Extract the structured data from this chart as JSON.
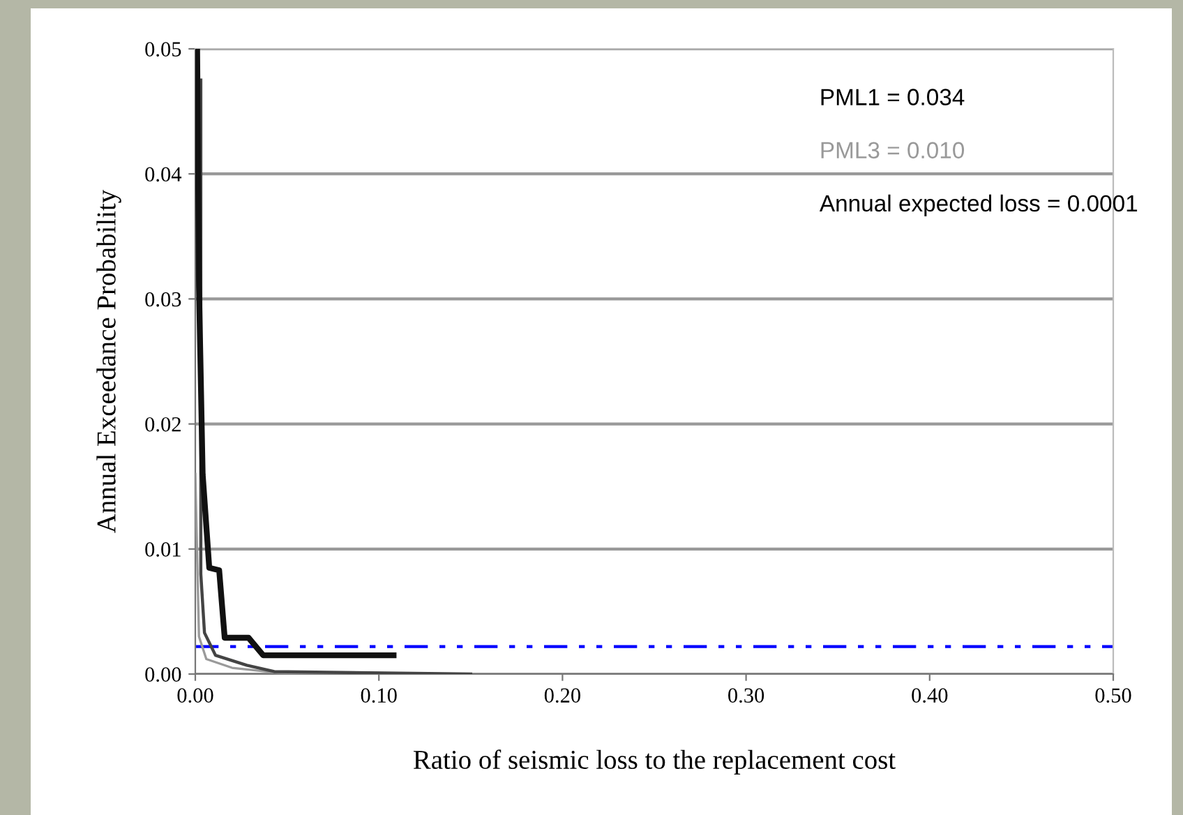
{
  "chart_data": {
    "type": "line",
    "xlabel": "Ratio of seismic loss to the replacement cost",
    "ylabel": "Annual Exceedance Probability",
    "annotations": [
      "PML1 = 0.034",
      "PML3 = 0.010",
      "Annual expected loss = 0.0001"
    ],
    "series": [
      {
        "color": "#111111",
        "x": [
          0.001,
          0.002,
          0.004,
          0.0076,
          0.013,
          0.016,
          0.029,
          0.037,
          0.108
        ],
        "values": [
          0.05,
          0.031,
          0.016,
          0.0085,
          0.0083,
          0.0029,
          0.0029,
          0.0015,
          0.0015
        ]
      },
      {
        "color": "#444444",
        "x": [
          0.003,
          0.003,
          0.005,
          0.011,
          0.028,
          0.043,
          0.15
        ],
        "values": [
          0.0475,
          0.008,
          0.0033,
          0.0015,
          0.0007,
          0.0002,
          0.0
        ]
      },
      {
        "color": "#9a9a9a",
        "x": [
          0.0,
          0.002,
          0.006,
          0.02,
          0.045,
          0.1
        ],
        "values": [
          0.016,
          0.003,
          0.0012,
          0.0005,
          0.0001,
          0.0
        ]
      }
    ],
    "xlim": [
      0,
      0.5
    ],
    "ylim": [
      0,
      0.05
    ],
    "xticks": [
      {
        "value": 0,
        "label": "0.00"
      },
      {
        "value": 0.1,
        "label": "0.10"
      },
      {
        "value": 0.2,
        "label": "0.20"
      },
      {
        "value": 0.3,
        "label": "0.30"
      },
      {
        "value": 0.4,
        "label": "0.40"
      },
      {
        "value": 0.5,
        "label": "0.50"
      }
    ],
    "yticks": [
      {
        "value": 0,
        "label": "0.00"
      },
      {
        "value": 0.01,
        "label": "0.01"
      },
      {
        "value": 0.02,
        "label": "0.02"
      },
      {
        "value": 0.03,
        "label": "0.03"
      },
      {
        "value": 0.04,
        "label": "0.04"
      },
      {
        "value": 0.05,
        "label": "0.05"
      }
    ],
    "ref_lines": [
      {
        "axis": "y",
        "value": 0.0022,
        "color": "#0000ff",
        "line_style": "dashed"
      }
    ],
    "grid": "y",
    "legend": false,
    "marker": "none",
    "line_style": "solid"
  }
}
